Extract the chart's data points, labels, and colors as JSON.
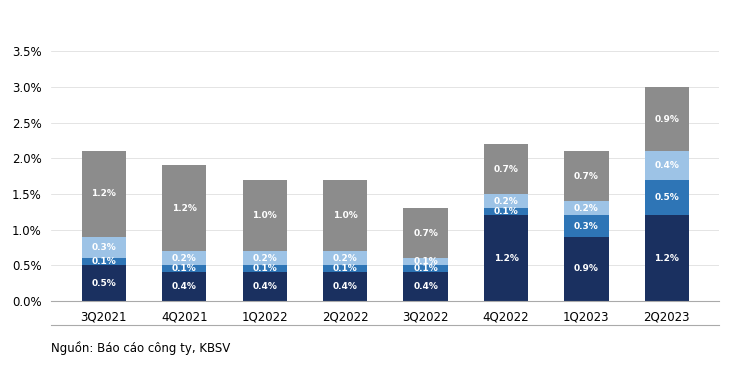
{
  "categories": [
    "3Q2021",
    "4Q2021",
    "1Q2022",
    "2Q2022",
    "3Q2022",
    "4Q2022",
    "1Q2023",
    "2Q2023"
  ],
  "series": {
    "no_can_chu_y": [
      0.5,
      0.4,
      0.4,
      0.4,
      0.4,
      1.2,
      0.9,
      1.2
    ],
    "no_duoi_tieu_chuan": [
      0.1,
      0.1,
      0.1,
      0.1,
      0.1,
      0.1,
      0.3,
      0.5
    ],
    "no_nghi_ngo": [
      0.3,
      0.2,
      0.2,
      0.2,
      0.1,
      0.2,
      0.2,
      0.4
    ],
    "no_xau": [
      1.2,
      1.2,
      1.0,
      1.0,
      0.7,
      0.7,
      0.7,
      0.9
    ]
  },
  "colors": {
    "no_can_chu_y": "#1a3060",
    "no_duoi_tieu_chuan": "#2e75b6",
    "no_nghi_ngo": "#9dc3e6",
    "no_xau": "#8c8c8c"
  },
  "ylim": [
    0,
    3.5
  ],
  "yticks": [
    0.0,
    0.5,
    1.0,
    1.5,
    2.0,
    2.5,
    3.0,
    3.5
  ],
  "source": "Nguồn: Báo cáo công ty, KBSV",
  "background_color": "#ffffff",
  "bar_width": 0.55
}
